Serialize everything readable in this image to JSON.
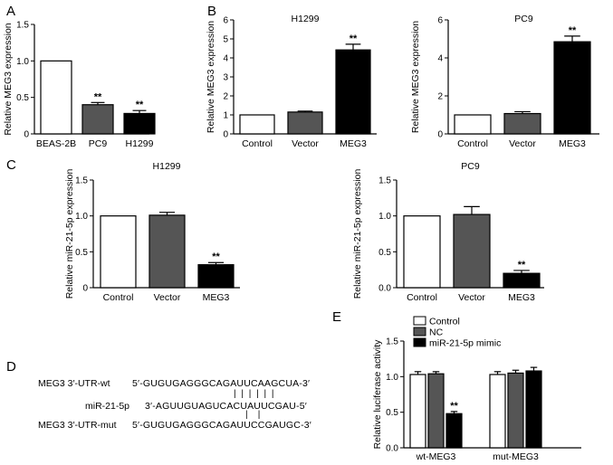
{
  "panels": {
    "A": "A",
    "B": "B",
    "C": "C",
    "D": "D",
    "E": "E"
  },
  "chart_data": [
    {
      "id": "A",
      "type": "bar",
      "title": "",
      "ylabel": "Relative MEG3 expression",
      "categories": [
        "BEAS-2B",
        "PC9",
        "H1299"
      ],
      "values": [
        1.0,
        0.4,
        0.28
      ],
      "errors": [
        0,
        0.03,
        0.04
      ],
      "annotations": [
        "",
        "**",
        "**"
      ],
      "fills": [
        "#ffffff",
        "#555555",
        "#000000"
      ],
      "ylim": [
        0,
        1.5
      ],
      "yticks": [
        "0",
        "0.5",
        "1.0",
        "1.5"
      ],
      "ytick_values": [
        0,
        0.5,
        1.0,
        1.5
      ]
    },
    {
      "id": "B1",
      "type": "bar",
      "title": "H1299",
      "ylabel": "Relative MEG3 expression",
      "categories": [
        "Control",
        "Vector",
        "MEG3"
      ],
      "values": [
        1.0,
        1.15,
        4.42
      ],
      "errors": [
        0,
        0.05,
        0.3
      ],
      "annotations": [
        "",
        "",
        "**"
      ],
      "fills": [
        "#ffffff",
        "#555555",
        "#000000"
      ],
      "ylim": [
        0,
        6
      ],
      "yticks": [
        "0",
        "1",
        "2",
        "3",
        "4",
        "5",
        "6"
      ],
      "ytick_values": [
        0,
        1,
        2,
        3,
        4,
        5,
        6
      ]
    },
    {
      "id": "B2",
      "type": "bar",
      "title": "PC9",
      "ylabel": "Relative MEG3 expression",
      "categories": [
        "Control",
        "Vector",
        "MEG3"
      ],
      "values": [
        1.0,
        1.07,
        4.85
      ],
      "errors": [
        0,
        0.1,
        0.3
      ],
      "annotations": [
        "",
        "",
        "**"
      ],
      "fills": [
        "#ffffff",
        "#555555",
        "#000000"
      ],
      "ylim": [
        0,
        6
      ],
      "yticks": [
        "0",
        "2",
        "4",
        "6"
      ],
      "ytick_values": [
        0,
        2,
        4,
        6
      ]
    },
    {
      "id": "C1",
      "type": "bar",
      "title": "H1299",
      "ylabel": "Relative miR-21-5p expression",
      "categories": [
        "Control",
        "Vector",
        "MEG3"
      ],
      "values": [
        1.0,
        1.01,
        0.32
      ],
      "errors": [
        0,
        0.04,
        0.03
      ],
      "annotations": [
        "",
        "",
        "**"
      ],
      "fills": [
        "#ffffff",
        "#555555",
        "#000000"
      ],
      "ylim": [
        0,
        1.5
      ],
      "yticks": [
        "0",
        "0.5",
        "1.0",
        "1.5"
      ],
      "ytick_values": [
        0,
        0.5,
        1.0,
        1.5
      ]
    },
    {
      "id": "C2",
      "type": "bar",
      "title": "PC9",
      "ylabel": "Relative miR-21-5p expression",
      "categories": [
        "Control",
        "Vector",
        "MEG3"
      ],
      "values": [
        1.0,
        1.02,
        0.2
      ],
      "errors": [
        0,
        0.11,
        0.04
      ],
      "annotations": [
        "",
        "",
        "**"
      ],
      "fills": [
        "#ffffff",
        "#555555",
        "#000000"
      ],
      "ylim": [
        0,
        1.5
      ],
      "yticks": [
        "0.0",
        "0.5",
        "1.0",
        "1.5"
      ],
      "ytick_values": [
        0,
        0.5,
        1.0,
        1.5
      ]
    },
    {
      "id": "E",
      "type": "bar",
      "title": "",
      "ylabel": "Relative luciferase activity",
      "categories": [
        "wt-MEG3",
        "mut-MEG3"
      ],
      "series": [
        {
          "name": "Control",
          "fill": "#ffffff",
          "values": [
            1.03,
            1.03
          ],
          "errors": [
            0.04,
            0.04
          ],
          "annotations": [
            "",
            ""
          ]
        },
        {
          "name": "NC",
          "fill": "#555555",
          "values": [
            1.04,
            1.05
          ],
          "errors": [
            0.03,
            0.04
          ],
          "annotations": [
            "",
            ""
          ]
        },
        {
          "name": "miR-21-5p mimic",
          "fill": "#000000",
          "values": [
            0.48,
            1.08
          ],
          "errors": [
            0.03,
            0.05
          ],
          "annotations": [
            "**",
            ""
          ]
        }
      ],
      "legend": "top-left",
      "ylim": [
        0,
        1.5
      ],
      "yticks": [
        "0.0",
        "0.5",
        "1.0",
        "1.5"
      ],
      "ytick_values": [
        0,
        0.5,
        1.0,
        1.5
      ]
    }
  ],
  "sequences": {
    "row1_label": "MEG3 3′-UTR-wt",
    "row1_seq": "5′-GUGUGAGGGCAGAUUCAAGCUA-3′",
    "pairing": "| | | | | |",
    "row2_label": "miR-21-5p",
    "row2_seq": "3′-AGUUGUAGUCACUAUUCGAU-5′",
    "mut_marks": "|    |",
    "row3_label": "MEG3 3′-UTR-mut",
    "row3_seq": "5′-GUGUGAGGGCAGAUUCCGAUGC-3′"
  }
}
